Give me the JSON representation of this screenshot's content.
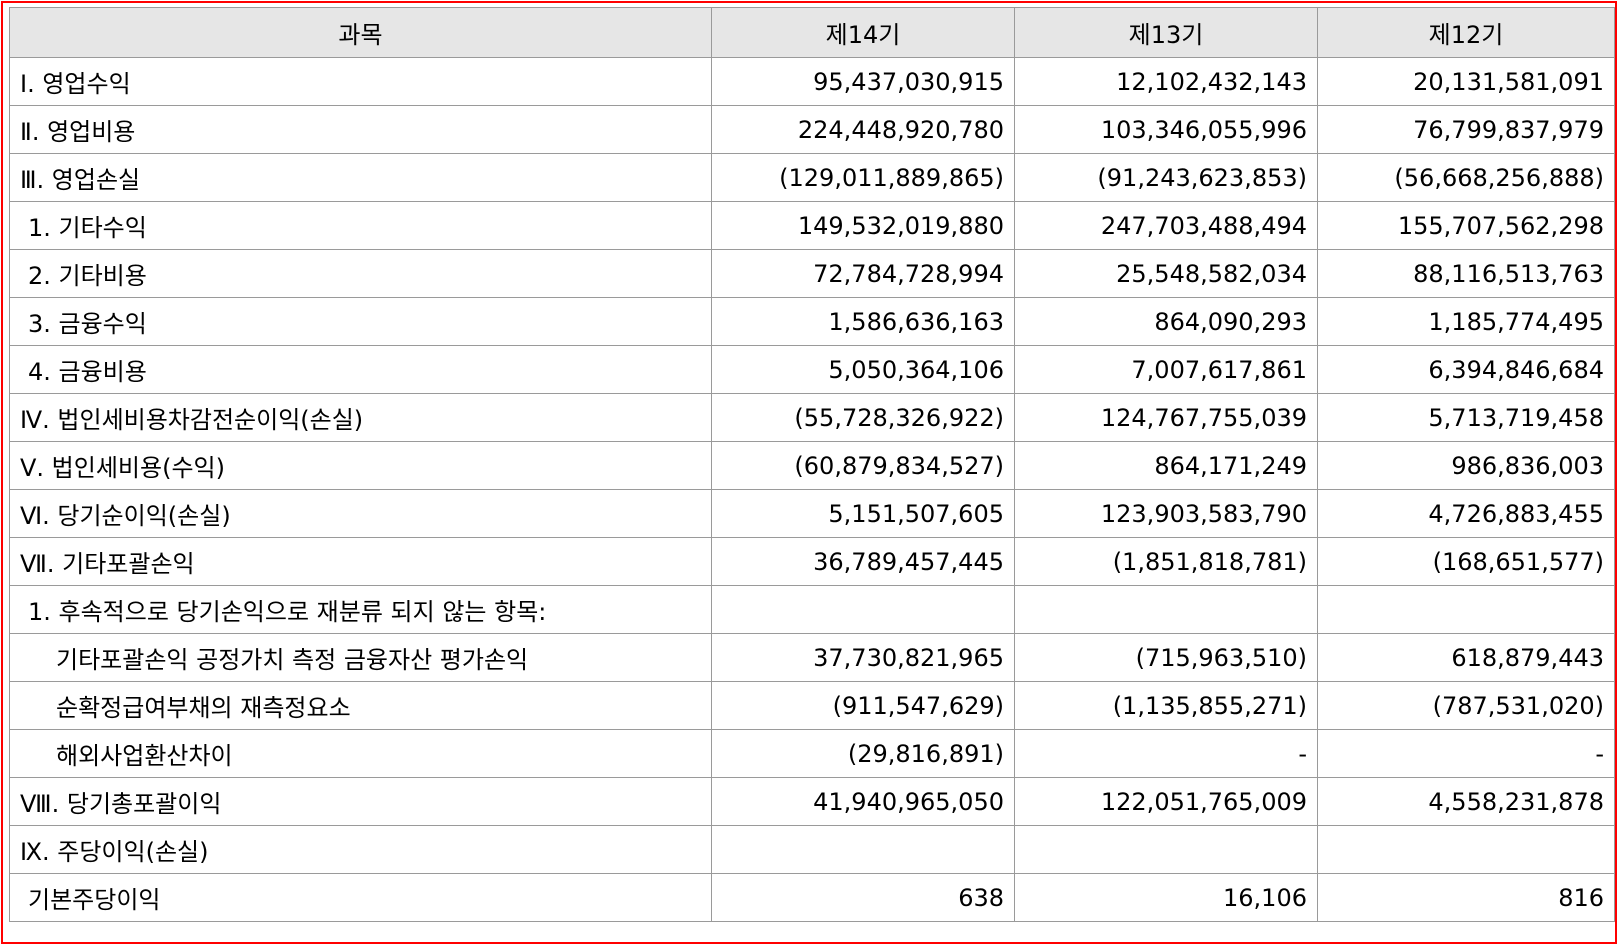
{
  "table": {
    "headers": [
      "과목",
      "제14기",
      "제13기",
      "제12기"
    ],
    "rows": [
      {
        "subject": "Ⅰ. 영업수익",
        "v14": "95,437,030,915",
        "v13": "12,102,432,143",
        "v12": "20,131,581,091"
      },
      {
        "subject": "Ⅱ. 영업비용",
        "v14": "224,448,920,780",
        "v13": "103,346,055,996",
        "v12": "76,799,837,979"
      },
      {
        "subject": "Ⅲ. 영업손실",
        "v14": "(129,011,889,865)",
        "v13": "(91,243,623,853)",
        "v12": "(56,668,256,888)"
      },
      {
        "subject": "1. 기타수익",
        "v14": "149,532,019,880",
        "v13": "247,703,488,494",
        "v12": "155,707,562,298"
      },
      {
        "subject": "2. 기타비용",
        "v14": "72,784,728,994",
        "v13": "25,548,582,034",
        "v12": "88,116,513,763"
      },
      {
        "subject": "3. 금융수익",
        "v14": "1,586,636,163",
        "v13": "864,090,293",
        "v12": "1,185,774,495"
      },
      {
        "subject": "4. 금융비용",
        "v14": "5,050,364,106",
        "v13": "7,007,617,861",
        "v12": "6,394,846,684"
      },
      {
        "subject": "Ⅳ. 법인세비용차감전순이익(손실)",
        "v14": "(55,728,326,922)",
        "v13": "124,767,755,039",
        "v12": "5,713,719,458"
      },
      {
        "subject": "Ⅴ. 법인세비용(수익)",
        "v14": "(60,879,834,527)",
        "v13": "864,171,249",
        "v12": "986,836,003"
      },
      {
        "subject": "Ⅵ. 당기순이익(손실)",
        "v14": "5,151,507,605",
        "v13": "123,903,583,790",
        "v12": "4,726,883,455"
      },
      {
        "subject": "Ⅶ. 기타포괄손익",
        "v14": "36,789,457,445",
        "v13": "(1,851,818,781)",
        "v12": "(168,651,577)"
      },
      {
        "subject": "1. 후속적으로 당기손익으로 재분류 되지 않는 항목:",
        "v14": "",
        "v13": "",
        "v12": ""
      },
      {
        "subject": "기타포괄손익 공정가치 측정 금융자산 평가손익",
        "v14": "37,730,821,965",
        "v13": "(715,963,510)",
        "v12": "618,879,443"
      },
      {
        "subject": "순확정급여부채의 재측정요소",
        "v14": "(911,547,629)",
        "v13": "(1,135,855,271)",
        "v12": "(787,531,020)"
      },
      {
        "subject": "해외사업환산차이",
        "v14": "(29,816,891)",
        "v13": "-",
        "v12": "-"
      },
      {
        "subject": "Ⅷ. 당기총포괄이익",
        "v14": "41,940,965,050",
        "v13": "122,051,765,009",
        "v12": "4,558,231,878"
      },
      {
        "subject": "Ⅸ. 주당이익(손실)",
        "v14": "",
        "v13": "",
        "v12": ""
      },
      {
        "subject": "기본주당이익",
        "v14": "638",
        "v13": "16,106",
        "v12": "816"
      }
    ]
  }
}
